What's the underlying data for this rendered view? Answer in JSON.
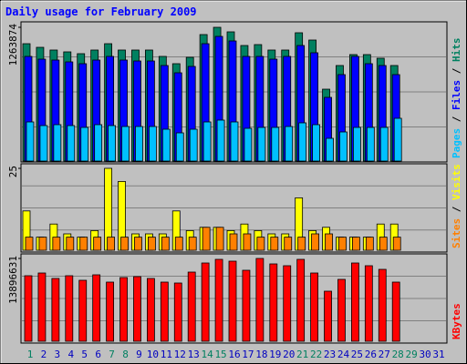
{
  "chart_data": [
    {
      "type": "bar",
      "title": "Daily usage for February 2009",
      "ylim": [
        0,
        1263874
      ],
      "yticks": [
        1263874
      ],
      "series": [
        {
          "name": "Hits",
          "color": "#008060",
          "values": [
            1109000,
            1074700,
            1049000,
            1031800,
            1014600,
            1049000,
            1109000,
            1049000,
            1049000,
            1049000,
            988800,
            920000,
            980200,
            1195100,
            1263874,
            1220900,
            1091900,
            1100500,
            1049000,
            1049000,
            1212300,
            1143500,
            679200,
            902800,
            1006000,
            1006000,
            971600,
            902800,
            null,
            null,
            null
          ]
        },
        {
          "name": "Files",
          "color": "#0000ff",
          "values": [
            988800,
            963000,
            954400,
            937200,
            920000,
            954400,
            988800,
            954400,
            945800,
            945800,
            902800,
            834000,
            894200,
            1109000,
            1177900,
            1134900,
            988800,
            988800,
            963000,
            988800,
            1091900,
            1023200,
            601900,
            816800,
            988800,
            920000,
            902800,
            816800,
            null,
            null,
            null
          ]
        },
        {
          "name": "Pages",
          "color": "#00c0ff",
          "values": [
            369700,
            335300,
            343900,
            335300,
            318100,
            343900,
            335300,
            326700,
            326700,
            326700,
            300900,
            266500,
            300900,
            369700,
            386900,
            369700,
            309500,
            318100,
            318100,
            326700,
            361100,
            343900,
            214900,
            275100,
            318100,
            318100,
            318100,
            404100,
            null,
            null,
            null
          ]
        }
      ]
    },
    {
      "type": "bar",
      "ylim": [
        0,
        25
      ],
      "yticks": [
        25
      ],
      "series": [
        {
          "name": "Visits",
          "color": "#ffff00",
          "values": [
            12,
            4,
            8,
            5,
            4,
            6,
            25,
            21,
            5,
            5,
            5,
            12,
            6,
            7,
            7,
            6,
            8,
            6,
            5,
            5,
            16,
            6,
            7,
            4,
            4,
            4,
            8,
            8,
            null,
            null,
            null
          ]
        },
        {
          "name": "Sites",
          "color": "#ff8000",
          "values": [
            4,
            4,
            4,
            4,
            4,
            4,
            4,
            4,
            4,
            4,
            4,
            4,
            4,
            7,
            7,
            5,
            5,
            4,
            4,
            4,
            4,
            5,
            5,
            4,
            4,
            4,
            4,
            4,
            null,
            null,
            null
          ]
        }
      ]
    },
    {
      "type": "bar",
      "ylim": [
        0,
        13896631
      ],
      "yticks": [
        13896631
      ],
      "categories": [
        "1",
        "2",
        "3",
        "4",
        "5",
        "6",
        "7",
        "8",
        "9",
        "10",
        "11",
        "12",
        "13",
        "14",
        "15",
        "16",
        "17",
        "18",
        "19",
        "20",
        "21",
        "22",
        "23",
        "24",
        "25",
        "26",
        "27",
        "28",
        "29",
        "30",
        "31"
      ],
      "category_colors": [
        "#008060",
        "#0000c0",
        "#0000c0",
        "#0000c0",
        "#0000c0",
        "#0000c0",
        "#008060",
        "#008060",
        "#0000c0",
        "#0000c0",
        "#0000c0",
        "#0000c0",
        "#0000c0",
        "#008060",
        "#008060",
        "#0000c0",
        "#0000c0",
        "#0000c0",
        "#0000c0",
        "#0000c0",
        "#008060",
        "#008060",
        "#0000c0",
        "#0000c0",
        "#0000c0",
        "#0000c0",
        "#0000c0",
        "#008060",
        "#008060",
        "#0000c0",
        "#0000c0"
      ],
      "series": [
        {
          "name": "KBytes",
          "color": "#ff0000",
          "values": [
            10995100,
            11453300,
            10537000,
            10995100,
            10231600,
            11147800,
            9926200,
            10689700,
            10842400,
            10537000,
            9926200,
            9773400,
            11606000,
            13133100,
            13743900,
            13438500,
            11911400,
            13896631,
            12980400,
            12674900,
            13743900,
            11453300,
            8399100,
            10384300,
            13133100,
            12674900,
            12064100,
            9926200,
            null,
            null,
            null
          ]
        }
      ]
    }
  ]
}
